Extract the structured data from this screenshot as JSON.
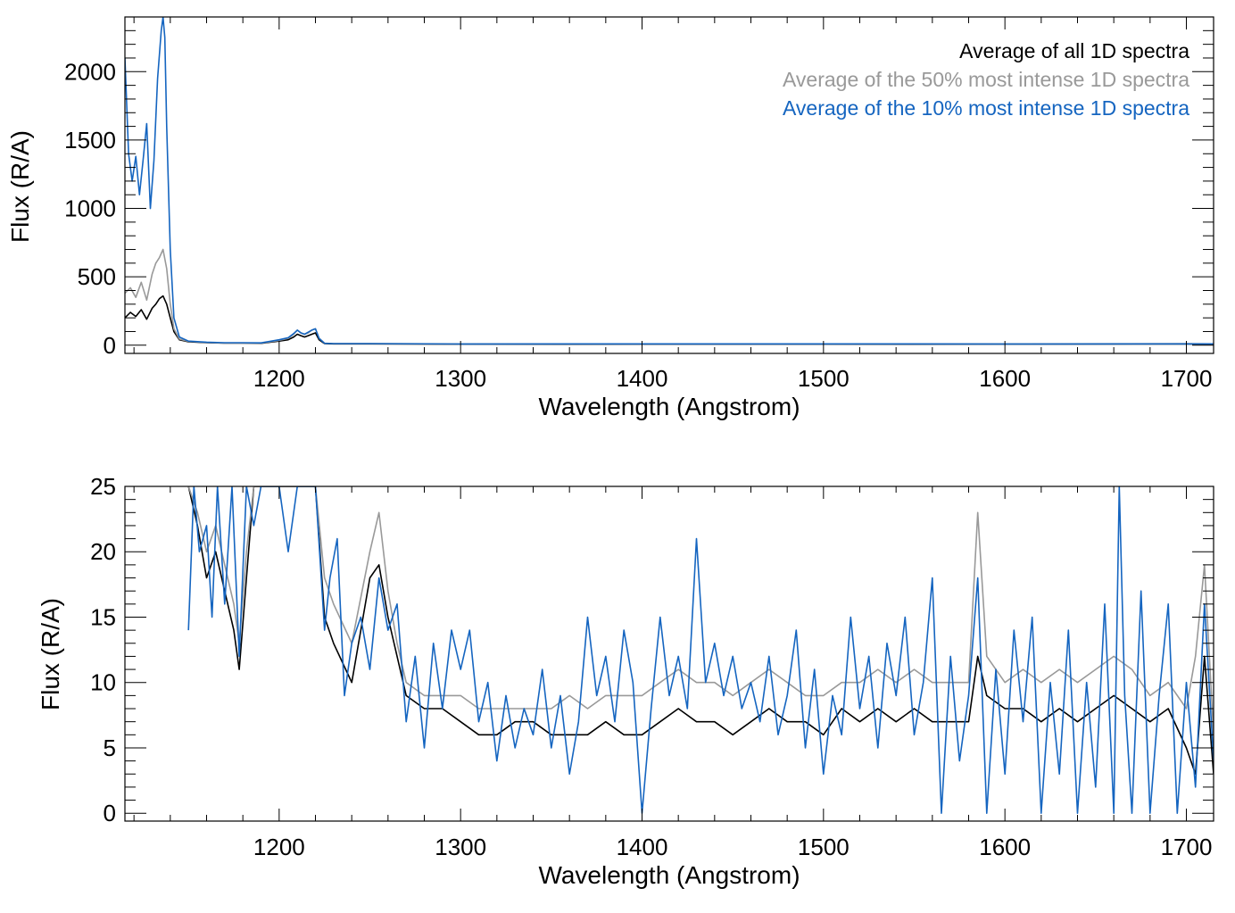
{
  "chart_data": [
    {
      "type": "line",
      "xlabel": "Wavelength (Angstrom)",
      "ylabel": "Flux (R/A)",
      "xlim": [
        1115,
        1715
      ],
      "ylim": [
        -60,
        2400
      ],
      "xticks": [
        1200,
        1300,
        1400,
        1500,
        1600,
        1700
      ],
      "yticks": [
        0,
        500,
        1000,
        1500,
        2000
      ],
      "grid": false,
      "legend_position": "top-right",
      "series": [
        {
          "name": "Average of all 1D spectra",
          "color": "#000000",
          "x": [
            1115,
            1118,
            1121,
            1124,
            1127,
            1130,
            1132,
            1134,
            1136,
            1138,
            1140,
            1142,
            1145,
            1150,
            1160,
            1170,
            1180,
            1190,
            1200,
            1205,
            1208,
            1210,
            1212,
            1214,
            1216,
            1218,
            1220,
            1222,
            1225,
            1230,
            1250,
            1300,
            1400,
            1500,
            1600,
            1700,
            1715
          ],
          "y": [
            200,
            240,
            210,
            260,
            190,
            270,
            300,
            340,
            360,
            300,
            200,
            100,
            40,
            25,
            18,
            15,
            15,
            14,
            30,
            40,
            60,
            80,
            70,
            60,
            70,
            80,
            90,
            40,
            12,
            10,
            10,
            8,
            7,
            7,
            8,
            9,
            8
          ]
        },
        {
          "name": "Average of the 50% most intense 1D spectra",
          "color": "#999999",
          "x": [
            1115,
            1118,
            1121,
            1124,
            1127,
            1130,
            1132,
            1134,
            1136,
            1138,
            1140,
            1142,
            1145,
            1150,
            1160,
            1170,
            1180,
            1190,
            1200,
            1205,
            1208,
            1210,
            1212,
            1214,
            1216,
            1218,
            1220,
            1222,
            1225,
            1230,
            1250,
            1300,
            1400,
            1500,
            1600,
            1700,
            1715
          ],
          "y": [
            380,
            420,
            350,
            460,
            330,
            520,
            600,
            640,
            700,
            560,
            300,
            120,
            45,
            28,
            20,
            16,
            16,
            15,
            35,
            50,
            80,
            110,
            90,
            80,
            90,
            110,
            120,
            50,
            15,
            12,
            12,
            10,
            9,
            9,
            10,
            11,
            10
          ]
        },
        {
          "name": "Average of the 10% most intense 1D spectra",
          "color": "#1565c0",
          "x": [
            1115,
            1117,
            1119,
            1121,
            1123,
            1125,
            1127,
            1129,
            1131,
            1133,
            1135,
            1136,
            1137,
            1138,
            1140,
            1142,
            1145,
            1150,
            1160,
            1170,
            1180,
            1190,
            1200,
            1205,
            1208,
            1210,
            1212,
            1214,
            1216,
            1218,
            1220,
            1222,
            1225,
            1230,
            1250,
            1300,
            1400,
            1500,
            1600,
            1700,
            1715
          ],
          "y": [
            2100,
            1400,
            1200,
            1380,
            1100,
            1350,
            1620,
            1000,
            1350,
            1950,
            2300,
            2400,
            2250,
            1600,
            700,
            200,
            60,
            30,
            22,
            18,
            18,
            17,
            40,
            55,
            85,
            110,
            90,
            80,
            95,
            110,
            120,
            50,
            14,
            12,
            12,
            9,
            10,
            10,
            9,
            10,
            10
          ]
        }
      ]
    },
    {
      "type": "line",
      "xlabel": "Wavelength (Angstrom)",
      "ylabel": "Flux (R/A)",
      "xlim": [
        1115,
        1715
      ],
      "ylim": [
        -0.6,
        25
      ],
      "xticks": [
        1200,
        1300,
        1400,
        1500,
        1600,
        1700
      ],
      "yticks": [
        0,
        5,
        10,
        15,
        20,
        25
      ],
      "grid": false,
      "series": [
        {
          "name": "Average of all 1D spectra",
          "color": "#000000",
          "x": [
            1150,
            1155,
            1160,
            1165,
            1170,
            1175,
            1178,
            1182,
            1186,
            1190,
            1195,
            1200,
            1205,
            1210,
            1215,
            1220,
            1225,
            1230,
            1240,
            1250,
            1255,
            1260,
            1265,
            1270,
            1280,
            1290,
            1300,
            1310,
            1320,
            1330,
            1340,
            1350,
            1360,
            1370,
            1380,
            1390,
            1400,
            1410,
            1420,
            1430,
            1440,
            1450,
            1460,
            1470,
            1480,
            1490,
            1500,
            1510,
            1520,
            1530,
            1540,
            1550,
            1560,
            1570,
            1580,
            1585,
            1590,
            1600,
            1610,
            1620,
            1630,
            1640,
            1650,
            1660,
            1670,
            1680,
            1690,
            1700,
            1705,
            1710,
            1715
          ],
          "y": [
            25,
            22,
            18,
            20,
            17,
            14,
            11,
            18,
            25,
            25,
            25,
            25,
            25,
            25,
            25,
            25,
            15,
            13,
            10,
            18,
            19,
            15,
            12,
            9,
            8,
            8,
            7,
            6,
            6,
            7,
            7,
            6,
            6,
            6,
            7,
            6,
            6,
            7,
            8,
            7,
            7,
            6,
            7,
            8,
            7,
            7,
            6,
            8,
            7,
            8,
            7,
            8,
            7,
            7,
            7,
            12,
            9,
            8,
            8,
            7,
            8,
            7,
            8,
            9,
            8,
            7,
            8,
            5,
            3,
            12,
            3
          ]
        },
        {
          "name": "Average of the 50% most intense 1D spectra",
          "color": "#999999",
          "x": [
            1150,
            1155,
            1160,
            1165,
            1170,
            1175,
            1178,
            1182,
            1186,
            1190,
            1195,
            1200,
            1205,
            1210,
            1215,
            1220,
            1225,
            1230,
            1240,
            1250,
            1255,
            1260,
            1265,
            1270,
            1280,
            1290,
            1300,
            1310,
            1320,
            1330,
            1340,
            1350,
            1360,
            1370,
            1380,
            1390,
            1400,
            1410,
            1420,
            1430,
            1440,
            1450,
            1460,
            1470,
            1480,
            1490,
            1500,
            1510,
            1520,
            1530,
            1540,
            1550,
            1560,
            1570,
            1580,
            1585,
            1590,
            1600,
            1610,
            1620,
            1630,
            1640,
            1650,
            1660,
            1670,
            1680,
            1690,
            1700,
            1705,
            1710,
            1715
          ],
          "y": [
            25,
            23,
            20,
            22,
            19,
            16,
            13,
            20,
            25,
            25,
            25,
            25,
            25,
            25,
            25,
            25,
            18,
            16,
            13,
            20,
            23,
            17,
            13,
            10,
            9,
            9,
            9,
            8,
            8,
            8,
            8,
            8,
            9,
            8,
            9,
            9,
            9,
            10,
            11,
            10,
            10,
            9,
            10,
            11,
            10,
            9,
            9,
            10,
            10,
            11,
            10,
            11,
            10,
            10,
            10,
            23,
            12,
            10,
            11,
            10,
            11,
            10,
            11,
            12,
            11,
            9,
            10,
            8,
            12,
            19,
            6
          ]
        },
        {
          "name": "Average of the 10% most intense 1D spectra",
          "color": "#1565c0",
          "x": [
            1150,
            1153,
            1156,
            1160,
            1163,
            1166,
            1170,
            1174,
            1178,
            1182,
            1186,
            1190,
            1195,
            1200,
            1205,
            1210,
            1215,
            1220,
            1225,
            1228,
            1232,
            1236,
            1240,
            1245,
            1250,
            1255,
            1260,
            1265,
            1270,
            1275,
            1280,
            1285,
            1290,
            1295,
            1300,
            1305,
            1310,
            1315,
            1320,
            1325,
            1330,
            1335,
            1340,
            1345,
            1350,
            1355,
            1360,
            1365,
            1370,
            1375,
            1380,
            1385,
            1390,
            1395,
            1400,
            1405,
            1410,
            1415,
            1420,
            1425,
            1430,
            1435,
            1440,
            1445,
            1450,
            1455,
            1460,
            1465,
            1470,
            1475,
            1480,
            1485,
            1490,
            1495,
            1500,
            1505,
            1510,
            1515,
            1520,
            1525,
            1530,
            1535,
            1540,
            1545,
            1550,
            1555,
            1560,
            1565,
            1570,
            1575,
            1580,
            1585,
            1590,
            1595,
            1600,
            1605,
            1610,
            1615,
            1620,
            1625,
            1630,
            1635,
            1640,
            1645,
            1650,
            1655,
            1660,
            1663,
            1666,
            1670,
            1675,
            1680,
            1685,
            1690,
            1695,
            1700,
            1705,
            1710,
            1715
          ],
          "y": [
            14,
            25,
            20,
            22,
            15,
            25,
            16,
            25,
            12,
            25,
            22,
            25,
            25,
            25,
            20,
            25,
            25,
            25,
            14,
            18,
            21,
            9,
            13,
            15,
            11,
            18,
            14,
            16,
            7,
            12,
            5,
            13,
            8,
            14,
            11,
            14,
            7,
            10,
            4,
            9,
            5,
            8,
            6,
            11,
            5,
            9,
            3,
            7,
            15,
            9,
            12,
            7,
            14,
            10,
            0,
            8,
            15,
            9,
            12,
            8,
            21,
            10,
            13,
            9,
            12,
            8,
            10,
            7,
            12,
            6,
            9,
            14,
            5,
            11,
            3,
            9,
            6,
            15,
            8,
            12,
            5,
            13,
            9,
            15,
            6,
            10,
            18,
            0,
            12,
            4,
            9,
            18,
            0,
            11,
            3,
            14,
            7,
            15,
            0,
            10,
            3,
            14,
            0,
            10,
            2,
            16,
            0,
            25,
            9,
            0,
            17,
            0,
            9,
            16,
            0,
            10,
            2,
            16,
            4
          ]
        }
      ]
    }
  ]
}
